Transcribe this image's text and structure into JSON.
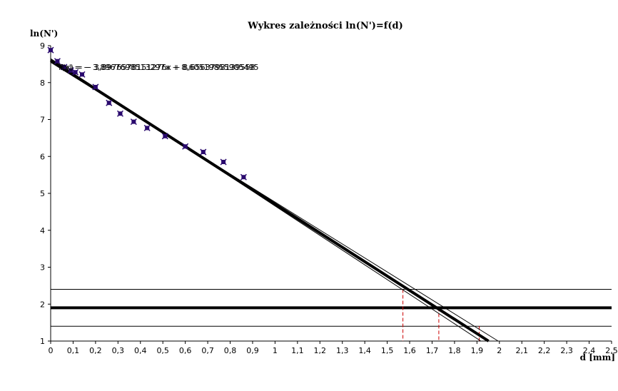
{
  "chart_data": {
    "type": "scatter",
    "title": "Wykres zależności ln(N')=f(d)",
    "xlabel": "d [mm]",
    "ylabel": "ln(N')",
    "xlim": [
      0,
      2.5
    ],
    "ylim": [
      1,
      9
    ],
    "x_ticks": [
      0,
      0.1,
      0.2,
      0.3,
      0.4,
      0.5,
      0.6,
      0.7,
      0.8,
      0.9,
      1,
      1.1,
      1.2,
      1.3,
      1.4,
      1.5,
      1.6,
      1.7,
      1.8,
      1.9,
      2,
      2.1,
      2.2,
      2.3,
      2.4,
      2.5
    ],
    "x_tick_labels": [
      "0",
      "0,1",
      "0,2",
      "0,3",
      "0,4",
      "0,5",
      "0,6",
      "0,7",
      "0,8",
      "0,9",
      "1",
      "1,1",
      "1,2",
      "1,3",
      "1,4",
      "1,5",
      "1,6",
      "1,7",
      "1,8",
      "1,9",
      "2",
      "2,1",
      "2,2",
      "2,3",
      "2,4",
      "2,5"
    ],
    "y_ticks": [
      1,
      2,
      3,
      4,
      5,
      6,
      7,
      8,
      9
    ],
    "y_tick_labels": [
      "1",
      "2",
      "3",
      "4",
      "5",
      "6",
      "7",
      "8",
      "9"
    ],
    "grid": false,
    "points": [
      {
        "x": 0.0,
        "y": 8.88
      },
      {
        "x": 0.03,
        "y": 8.58
      },
      {
        "x": 0.06,
        "y": 8.42
      },
      {
        "x": 0.09,
        "y": 8.33
      },
      {
        "x": 0.11,
        "y": 8.28
      },
      {
        "x": 0.14,
        "y": 8.22
      },
      {
        "x": 0.2,
        "y": 7.88
      },
      {
        "x": 0.26,
        "y": 7.45
      },
      {
        "x": 0.31,
        "y": 7.16
      },
      {
        "x": 0.37,
        "y": 6.94
      },
      {
        "x": 0.43,
        "y": 6.77
      },
      {
        "x": 0.51,
        "y": 6.55
      },
      {
        "x": 0.6,
        "y": 6.27
      },
      {
        "x": 0.68,
        "y": 6.12
      },
      {
        "x": 0.77,
        "y": 5.85
      },
      {
        "x": 0.86,
        "y": 5.44
      }
    ],
    "fit_line": {
      "slope": -3.8967,
      "intercept": 8.6052
    },
    "fit_bounds": [
      {
        "slope": -3.7857,
        "intercept": 8.5503
      },
      {
        "slope": -3.9897,
        "intercept": 8.6495
      }
    ],
    "fit_label": "f(x) = − 3,8967698513297x + 8,60519855905495",
    "fit_label_overlay": "f(x) = − 3,8976578151276x + 8,6563798139558",
    "hlines": [
      {
        "y": 1.9,
        "weight": "bold"
      },
      {
        "y": 2.4,
        "weight": "thin"
      },
      {
        "y": 1.4,
        "weight": "thin"
      }
    ],
    "vlines": [
      {
        "x": 1.57,
        "y_top": 2.4
      },
      {
        "x": 1.73,
        "y_top": 1.9
      },
      {
        "x": 1.91,
        "y_top": 1.4
      }
    ],
    "colors": {
      "points": "#2a0a6e",
      "lines": "#000000",
      "markers": "#cc0000"
    }
  }
}
